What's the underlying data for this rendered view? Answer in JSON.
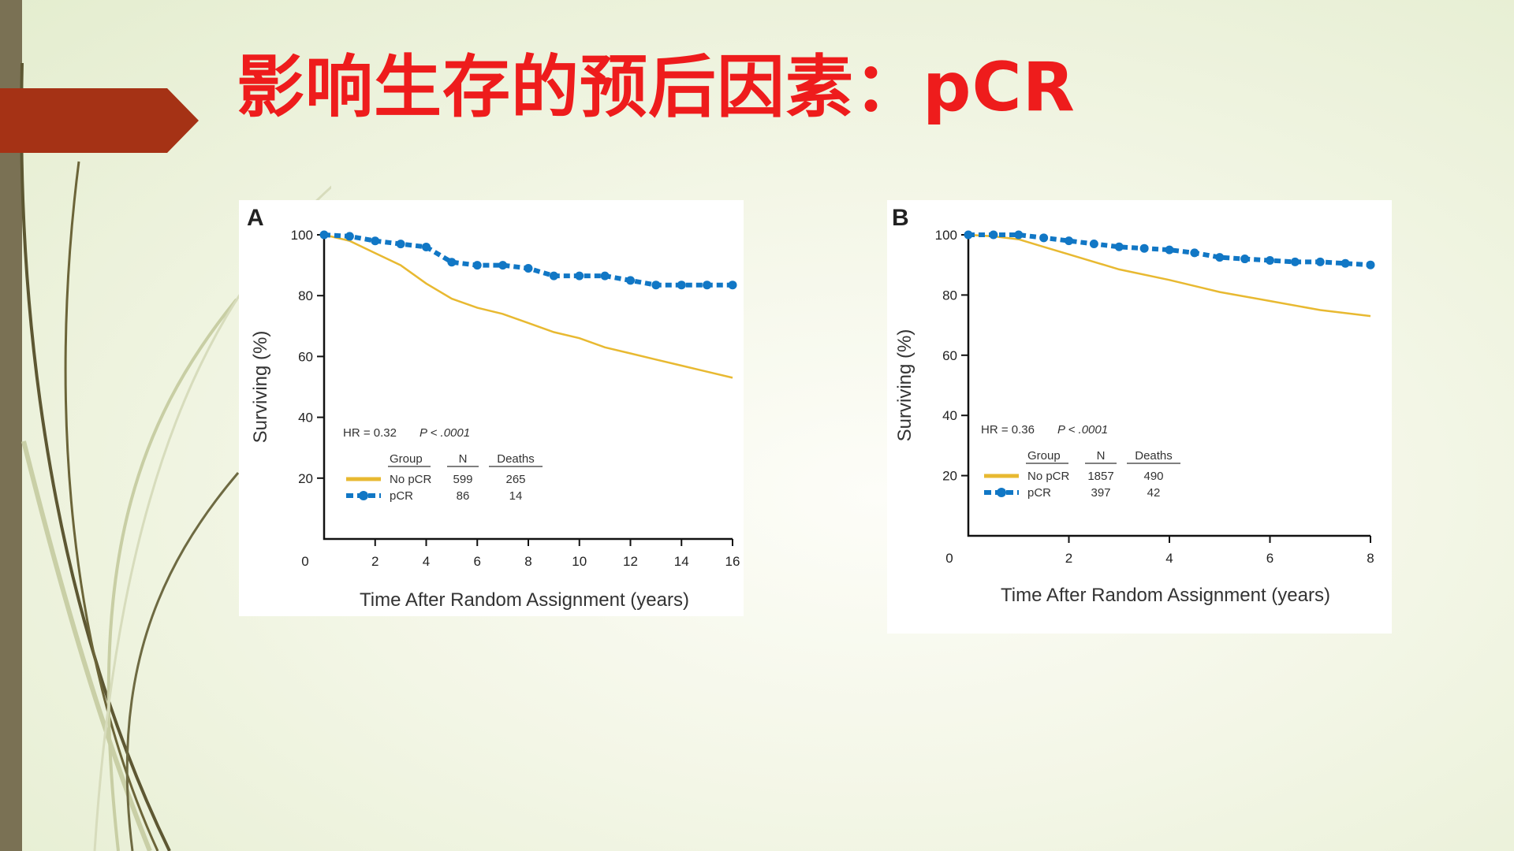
{
  "slide": {
    "title": "影响生存的预后因素：pCR"
  },
  "colors": {
    "title": "#ee1c1c",
    "no_pcr": "#e8b931",
    "pcr": "#1177c5",
    "arrow": "#a53215",
    "side_bar": "#7a7154"
  },
  "chart_data": [
    {
      "id": "A",
      "type": "line",
      "panel_label": "A",
      "xlabel": "Time After Random Assignment (years)",
      "ylabel": "Surviving (%)",
      "xlim": [
        0,
        16
      ],
      "ylim": [
        0,
        100
      ],
      "x_ticks": [
        "0",
        "2",
        "4",
        "6",
        "8",
        "10",
        "12",
        "14",
        "16"
      ],
      "y_ticks": [
        "20",
        "40",
        "60",
        "80",
        "100"
      ],
      "stats": {
        "hr": "HR = 0.32",
        "p": "P < .0001"
      },
      "legend_headers": {
        "group": "Group",
        "n": "N",
        "deaths": "Deaths"
      },
      "series": [
        {
          "name": "No pCR",
          "n": "599",
          "deaths": "265",
          "style": "solid",
          "x": [
            0,
            1,
            2,
            3,
            4,
            5,
            6,
            7,
            8,
            9,
            10,
            11,
            12,
            13,
            14,
            15,
            16
          ],
          "y": [
            100,
            98,
            94,
            90,
            84,
            79,
            76,
            74,
            71,
            68,
            66,
            63,
            61,
            59,
            57,
            55,
            53
          ]
        },
        {
          "name": "pCR",
          "n": "86",
          "deaths": "14",
          "style": "dashed-dots",
          "x": [
            0,
            1,
            2,
            3,
            4,
            5,
            6,
            7,
            8,
            9,
            10,
            11,
            12,
            13,
            14,
            15,
            16
          ],
          "y": [
            100,
            99.5,
            98,
            97,
            96,
            91,
            90,
            90,
            89,
            86.5,
            86.5,
            86.5,
            85,
            83.5,
            83.5,
            83.5,
            83.5
          ]
        }
      ]
    },
    {
      "id": "B",
      "type": "line",
      "panel_label": "B",
      "xlabel": "Time After Random Assignment (years)",
      "ylabel": "Surviving (%)",
      "xlim": [
        0,
        8
      ],
      "ylim": [
        0,
        100
      ],
      "x_ticks": [
        "0",
        "2",
        "4",
        "6",
        "8"
      ],
      "y_ticks": [
        "20",
        "40",
        "60",
        "80",
        "100"
      ],
      "stats": {
        "hr": "HR = 0.36",
        "p": "P < .0001"
      },
      "legend_headers": {
        "group": "Group",
        "n": "N",
        "deaths": "Deaths"
      },
      "series": [
        {
          "name": "No pCR",
          "n": "1857",
          "deaths": "490",
          "style": "solid",
          "x": [
            0,
            0.5,
            1,
            1.5,
            2,
            3,
            4,
            5,
            6,
            7,
            8
          ],
          "y": [
            100,
            99.5,
            98.5,
            96,
            93.5,
            88.5,
            85,
            81,
            78,
            75,
            73
          ]
        },
        {
          "name": "pCR",
          "n": "397",
          "deaths": "42",
          "style": "dashed-dots",
          "x": [
            0,
            0.5,
            1,
            1.5,
            2,
            2.5,
            3,
            3.5,
            4,
            4.5,
            5,
            5.5,
            6,
            6.5,
            7,
            7.5,
            8
          ],
          "y": [
            100,
            100,
            100,
            99,
            98,
            97,
            96,
            95.5,
            95,
            94,
            92.5,
            92,
            91.5,
            91,
            91,
            90.5,
            90
          ]
        }
      ]
    }
  ]
}
